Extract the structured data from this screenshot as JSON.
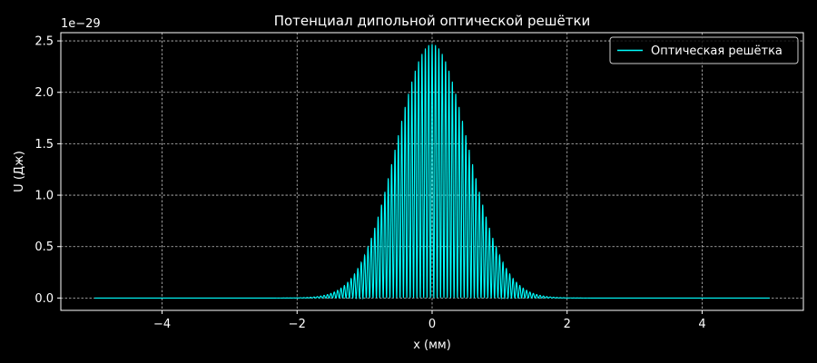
{
  "chart_data": {
    "type": "line",
    "title": "Потенциал дипольной оптической решётки",
    "xlabel": "x (мм)",
    "ylabel": "U (Дж)",
    "y_offset_label": "1e−29",
    "xlim": [
      -5.5,
      5.5
    ],
    "ylim": [
      -0.12,
      2.58
    ],
    "x_ticks": [
      -4,
      -2,
      0,
      2,
      4
    ],
    "x_tick_labels": [
      "−4",
      "−2",
      "0",
      "2",
      "4"
    ],
    "y_ticks": [
      0.0,
      0.5,
      1.0,
      1.5,
      2.0,
      2.5
    ],
    "y_tick_labels": [
      "0.0",
      "0.5",
      "1.0",
      "1.5",
      "2.0",
      "2.5"
    ],
    "grid": true,
    "legend_position": "top-right",
    "background_color": "#000000",
    "series": [
      {
        "name": "Оптическая решётка",
        "color": "#00ffff",
        "x_range": [
          -5,
          5
        ],
        "peak_value": 2.47,
        "gaussian_sigma_mm": 0.53,
        "lattice_period_mm": 0.05,
        "values_description_function": "U(x) = 2.47e-29 * exp(-x^2 / (2*0.53^2)) * cos^2(pi*x/0.05)"
      }
    ]
  }
}
